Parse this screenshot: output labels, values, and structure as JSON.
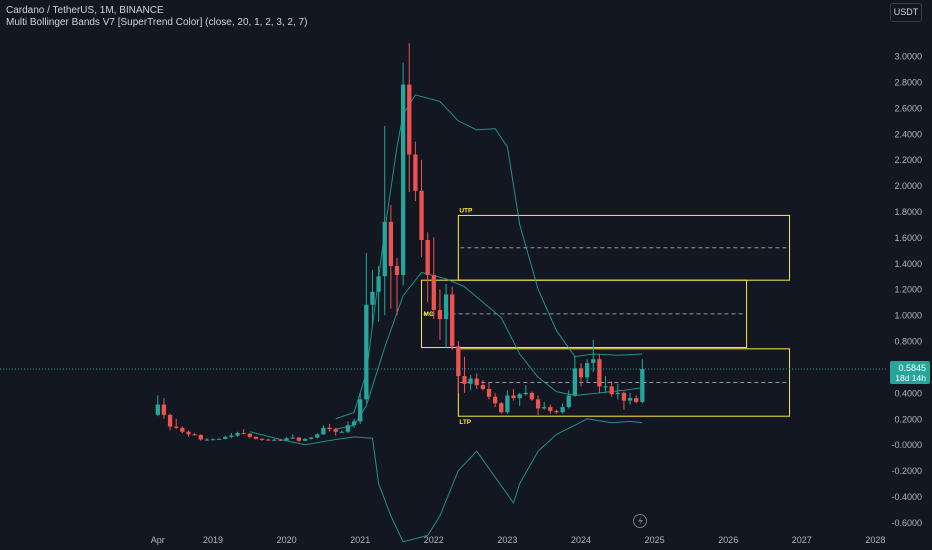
{
  "legend": {
    "title": "Cardano / TetherUS, 1M, BINANCE",
    "indicator": "Multi Bollinger Bands V7 [SuperTrend Color] (close, 20, 1, 2, 3, 2, 7)"
  },
  "currency_badge": "USDT",
  "price_label": {
    "price": "0.5845",
    "countdown": "18d 14h"
  },
  "colors": {
    "background": "#131722",
    "up": "#26a69a",
    "down": "#ef5350",
    "band": "#26a69a",
    "zone": "#ffeb3b",
    "price_line": "#26a69a",
    "axis_text": "#b2b5be"
  },
  "chart_data": {
    "type": "candlestick",
    "title": "Cardano / TetherUS, 1M, BINANCE",
    "x_tick_labels": [
      "Apr",
      "2019",
      "2020",
      "2021",
      "2022",
      "2023",
      "2024",
      "2025",
      "2026",
      "2027",
      "2028"
    ],
    "x_tick_dates": [
      "2018-04",
      "2019-01",
      "2020-01",
      "2021-01",
      "2022-01",
      "2023-01",
      "2024-01",
      "2025-01",
      "2026-01",
      "2027-01",
      "2028-01"
    ],
    "y_tick_labels": [
      "3.0000",
      "2.8000",
      "2.6000",
      "2.4000",
      "2.2000",
      "2.0000",
      "1.8000",
      "1.6000",
      "1.4000",
      "1.2000",
      "1.0000",
      "0.8000",
      "0.6000",
      "0.4000",
      "0.2000",
      "-0.0000",
      "-0.2000",
      "-0.4000",
      "-0.6000"
    ],
    "ylim": [
      -0.62,
      3.24
    ],
    "grid": false,
    "candles": [
      {
        "date": "2018-04",
        "o": 0.23,
        "h": 0.38,
        "l": 0.22,
        "c": 0.31
      },
      {
        "date": "2018-05",
        "o": 0.31,
        "h": 0.36,
        "l": 0.2,
        "c": 0.23
      },
      {
        "date": "2018-06",
        "o": 0.23,
        "h": 0.24,
        "l": 0.11,
        "c": 0.14
      },
      {
        "date": "2018-07",
        "o": 0.14,
        "h": 0.2,
        "l": 0.12,
        "c": 0.13
      },
      {
        "date": "2018-08",
        "o": 0.13,
        "h": 0.14,
        "l": 0.09,
        "c": 0.1
      },
      {
        "date": "2018-09",
        "o": 0.1,
        "h": 0.11,
        "l": 0.06,
        "c": 0.08
      },
      {
        "date": "2018-10",
        "o": 0.08,
        "h": 0.09,
        "l": 0.07,
        "c": 0.075
      },
      {
        "date": "2018-11",
        "o": 0.075,
        "h": 0.08,
        "l": 0.03,
        "c": 0.04
      },
      {
        "date": "2018-12",
        "o": 0.04,
        "h": 0.05,
        "l": 0.03,
        "c": 0.04
      },
      {
        "date": "2019-01",
        "o": 0.04,
        "h": 0.05,
        "l": 0.035,
        "c": 0.042
      },
      {
        "date": "2019-02",
        "o": 0.042,
        "h": 0.05,
        "l": 0.04,
        "c": 0.045
      },
      {
        "date": "2019-03",
        "o": 0.045,
        "h": 0.07,
        "l": 0.04,
        "c": 0.06
      },
      {
        "date": "2019-04",
        "o": 0.06,
        "h": 0.09,
        "l": 0.05,
        "c": 0.07
      },
      {
        "date": "2019-05",
        "o": 0.07,
        "h": 0.1,
        "l": 0.06,
        "c": 0.09
      },
      {
        "date": "2019-06",
        "o": 0.09,
        "h": 0.12,
        "l": 0.08,
        "c": 0.085
      },
      {
        "date": "2019-07",
        "o": 0.085,
        "h": 0.09,
        "l": 0.05,
        "c": 0.06
      },
      {
        "date": "2019-08",
        "o": 0.06,
        "h": 0.065,
        "l": 0.04,
        "c": 0.045
      },
      {
        "date": "2019-09",
        "o": 0.045,
        "h": 0.05,
        "l": 0.03,
        "c": 0.04
      },
      {
        "date": "2019-10",
        "o": 0.04,
        "h": 0.045,
        "l": 0.03,
        "c": 0.035
      },
      {
        "date": "2019-11",
        "o": 0.035,
        "h": 0.045,
        "l": 0.03,
        "c": 0.038
      },
      {
        "date": "2019-12",
        "o": 0.038,
        "h": 0.04,
        "l": 0.03,
        "c": 0.033
      },
      {
        "date": "2020-01",
        "o": 0.033,
        "h": 0.06,
        "l": 0.03,
        "c": 0.05
      },
      {
        "date": "2020-02",
        "o": 0.05,
        "h": 0.08,
        "l": 0.045,
        "c": 0.055
      },
      {
        "date": "2020-03",
        "o": 0.055,
        "h": 0.06,
        "l": 0.02,
        "c": 0.03
      },
      {
        "date": "2020-04",
        "o": 0.03,
        "h": 0.05,
        "l": 0.028,
        "c": 0.045
      },
      {
        "date": "2020-05",
        "o": 0.045,
        "h": 0.06,
        "l": 0.04,
        "c": 0.055
      },
      {
        "date": "2020-06",
        "o": 0.055,
        "h": 0.09,
        "l": 0.05,
        "c": 0.08
      },
      {
        "date": "2020-07",
        "o": 0.08,
        "h": 0.15,
        "l": 0.075,
        "c": 0.13
      },
      {
        "date": "2020-08",
        "o": 0.13,
        "h": 0.16,
        "l": 0.1,
        "c": 0.12
      },
      {
        "date": "2020-09",
        "o": 0.12,
        "h": 0.13,
        "l": 0.07,
        "c": 0.1
      },
      {
        "date": "2020-10",
        "o": 0.1,
        "h": 0.11,
        "l": 0.09,
        "c": 0.1
      },
      {
        "date": "2020-11",
        "o": 0.1,
        "h": 0.18,
        "l": 0.09,
        "c": 0.15
      },
      {
        "date": "2020-12",
        "o": 0.15,
        "h": 0.2,
        "l": 0.13,
        "c": 0.18
      },
      {
        "date": "2021-01",
        "o": 0.18,
        "h": 0.4,
        "l": 0.16,
        "c": 0.35
      },
      {
        "date": "2021-02",
        "o": 0.35,
        "h": 1.48,
        "l": 0.32,
        "c": 1.08
      },
      {
        "date": "2021-03",
        "o": 1.08,
        "h": 1.35,
        "l": 0.92,
        "c": 1.18
      },
      {
        "date": "2021-04",
        "o": 1.18,
        "h": 1.38,
        "l": 0.95,
        "c": 1.3
      },
      {
        "date": "2021-05",
        "o": 1.3,
        "h": 2.46,
        "l": 1.0,
        "c": 1.72
      },
      {
        "date": "2021-06",
        "o": 1.72,
        "h": 1.85,
        "l": 1.05,
        "c": 1.38
      },
      {
        "date": "2021-07",
        "o": 1.38,
        "h": 1.44,
        "l": 1.0,
        "c": 1.31
      },
      {
        "date": "2021-08",
        "o": 1.31,
        "h": 2.95,
        "l": 1.23,
        "c": 2.78
      },
      {
        "date": "2021-09",
        "o": 2.78,
        "h": 3.1,
        "l": 1.95,
        "c": 2.24
      },
      {
        "date": "2021-10",
        "o": 2.24,
        "h": 2.34,
        "l": 1.88,
        "c": 1.96
      },
      {
        "date": "2021-11",
        "o": 1.96,
        "h": 2.2,
        "l": 1.45,
        "c": 1.58
      },
      {
        "date": "2021-12",
        "o": 1.58,
        "h": 1.64,
        "l": 1.1,
        "c": 1.31
      },
      {
        "date": "2022-01",
        "o": 1.31,
        "h": 1.6,
        "l": 0.97,
        "c": 1.04
      },
      {
        "date": "2022-02",
        "o": 1.04,
        "h": 1.2,
        "l": 0.81,
        "c": 0.97
      },
      {
        "date": "2022-03",
        "o": 0.97,
        "h": 1.24,
        "l": 0.75,
        "c": 1.16
      },
      {
        "date": "2022-04",
        "o": 1.16,
        "h": 1.22,
        "l": 0.73,
        "c": 0.76
      },
      {
        "date": "2022-05",
        "o": 0.76,
        "h": 0.8,
        "l": 0.4,
        "c": 0.53
      },
      {
        "date": "2022-06",
        "o": 0.53,
        "h": 0.68,
        "l": 0.4,
        "c": 0.47
      },
      {
        "date": "2022-07",
        "o": 0.47,
        "h": 0.54,
        "l": 0.42,
        "c": 0.51
      },
      {
        "date": "2022-08",
        "o": 0.51,
        "h": 0.55,
        "l": 0.43,
        "c": 0.46
      },
      {
        "date": "2022-09",
        "o": 0.46,
        "h": 0.5,
        "l": 0.42,
        "c": 0.43
      },
      {
        "date": "2022-10",
        "o": 0.43,
        "h": 0.48,
        "l": 0.35,
        "c": 0.37
      },
      {
        "date": "2022-11",
        "o": 0.37,
        "h": 0.4,
        "l": 0.29,
        "c": 0.32
      },
      {
        "date": "2022-12",
        "o": 0.32,
        "h": 0.33,
        "l": 0.24,
        "c": 0.25
      },
      {
        "date": "2023-01",
        "o": 0.25,
        "h": 0.42,
        "l": 0.24,
        "c": 0.38
      },
      {
        "date": "2023-02",
        "o": 0.38,
        "h": 0.43,
        "l": 0.34,
        "c": 0.36
      },
      {
        "date": "2023-03",
        "o": 0.36,
        "h": 0.4,
        "l": 0.3,
        "c": 0.39
      },
      {
        "date": "2023-04",
        "o": 0.39,
        "h": 0.46,
        "l": 0.38,
        "c": 0.4
      },
      {
        "date": "2023-05",
        "o": 0.4,
        "h": 0.41,
        "l": 0.34,
        "c": 0.35
      },
      {
        "date": "2023-06",
        "o": 0.35,
        "h": 0.38,
        "l": 0.23,
        "c": 0.28
      },
      {
        "date": "2023-07",
        "o": 0.28,
        "h": 0.33,
        "l": 0.27,
        "c": 0.29
      },
      {
        "date": "2023-08",
        "o": 0.29,
        "h": 0.31,
        "l": 0.24,
        "c": 0.26
      },
      {
        "date": "2023-09",
        "o": 0.26,
        "h": 0.27,
        "l": 0.24,
        "c": 0.25
      },
      {
        "date": "2023-10",
        "o": 0.25,
        "h": 0.32,
        "l": 0.24,
        "c": 0.29
      },
      {
        "date": "2023-11",
        "o": 0.29,
        "h": 0.42,
        "l": 0.28,
        "c": 0.38
      },
      {
        "date": "2023-12",
        "o": 0.38,
        "h": 0.68,
        "l": 0.37,
        "c": 0.59
      },
      {
        "date": "2024-01",
        "o": 0.59,
        "h": 0.63,
        "l": 0.45,
        "c": 0.52
      },
      {
        "date": "2024-02",
        "o": 0.52,
        "h": 0.66,
        "l": 0.48,
        "c": 0.63
      },
      {
        "date": "2024-03",
        "o": 0.63,
        "h": 0.81,
        "l": 0.56,
        "c": 0.66
      },
      {
        "date": "2024-04",
        "o": 0.66,
        "h": 0.7,
        "l": 0.4,
        "c": 0.45
      },
      {
        "date": "2024-05",
        "o": 0.45,
        "h": 0.53,
        "l": 0.4,
        "c": 0.45
      },
      {
        "date": "2024-06",
        "o": 0.45,
        "h": 0.49,
        "l": 0.37,
        "c": 0.39
      },
      {
        "date": "2024-07",
        "o": 0.39,
        "h": 0.47,
        "l": 0.35,
        "c": 0.4
      },
      {
        "date": "2024-08",
        "o": 0.4,
        "h": 0.41,
        "l": 0.27,
        "c": 0.34
      },
      {
        "date": "2024-09",
        "o": 0.34,
        "h": 0.4,
        "l": 0.31,
        "c": 0.36
      },
      {
        "date": "2024-10",
        "o": 0.36,
        "h": 0.38,
        "l": 0.32,
        "c": 0.33
      },
      {
        "date": "2024-11",
        "o": 0.33,
        "h": 0.66,
        "l": 0.32,
        "c": 0.5845
      }
    ],
    "bands": {
      "upper": [
        {
          "date": "2020-09",
          "v": 0.2
        },
        {
          "date": "2020-12",
          "v": 0.25
        },
        {
          "date": "2021-02",
          "v": 0.55
        },
        {
          "date": "2021-05",
          "v": 1.65
        },
        {
          "date": "2021-07",
          "v": 2.3
        },
        {
          "date": "2021-08",
          "v": 2.55
        },
        {
          "date": "2021-10",
          "v": 2.7
        },
        {
          "date": "2022-02",
          "v": 2.65
        },
        {
          "date": "2022-05",
          "v": 2.5
        },
        {
          "date": "2022-08",
          "v": 2.43
        },
        {
          "date": "2022-11",
          "v": 2.44
        },
        {
          "date": "2023-01",
          "v": 2.3
        },
        {
          "date": "2023-03",
          "v": 1.7
        },
        {
          "date": "2023-06",
          "v": 1.2
        },
        {
          "date": "2023-09",
          "v": 0.88
        },
        {
          "date": "2023-12",
          "v": 0.68
        },
        {
          "date": "2024-03",
          "v": 0.7
        },
        {
          "date": "2024-07",
          "v": 0.69
        },
        {
          "date": "2024-11",
          "v": 0.7
        }
      ],
      "middle": [
        {
          "date": "2020-09",
          "v": 0.12
        },
        {
          "date": "2020-12",
          "v": 0.15
        },
        {
          "date": "2021-02",
          "v": 0.3
        },
        {
          "date": "2021-05",
          "v": 0.75
        },
        {
          "date": "2021-08",
          "v": 1.15
        },
        {
          "date": "2021-11",
          "v": 1.33
        },
        {
          "date": "2022-03",
          "v": 1.28
        },
        {
          "date": "2022-06",
          "v": 1.22
        },
        {
          "date": "2022-09",
          "v": 1.1
        },
        {
          "date": "2022-12",
          "v": 0.98
        },
        {
          "date": "2023-03",
          "v": 0.7
        },
        {
          "date": "2023-06",
          "v": 0.52
        },
        {
          "date": "2023-09",
          "v": 0.41
        },
        {
          "date": "2023-12",
          "v": 0.38
        },
        {
          "date": "2024-04",
          "v": 0.4
        },
        {
          "date": "2024-08",
          "v": 0.42
        },
        {
          "date": "2024-11",
          "v": 0.44
        }
      ],
      "lower": [
        {
          "date": "2020-09",
          "v": 0.04
        },
        {
          "date": "2020-12",
          "v": 0.06
        },
        {
          "date": "2021-03",
          "v": 0.05
        },
        {
          "date": "2021-04",
          "v": -0.3
        },
        {
          "date": "2021-06",
          "v": -0.55
        },
        {
          "date": "2021-08",
          "v": -0.75
        },
        {
          "date": "2021-12",
          "v": -0.7
        },
        {
          "date": "2022-02",
          "v": -0.55
        },
        {
          "date": "2022-05",
          "v": -0.2
        },
        {
          "date": "2022-08",
          "v": -0.05
        },
        {
          "date": "2022-11",
          "v": -0.25
        },
        {
          "date": "2023-02",
          "v": -0.45
        },
        {
          "date": "2023-03",
          "v": -0.3
        },
        {
          "date": "2023-06",
          "v": -0.05
        },
        {
          "date": "2023-09",
          "v": 0.08
        },
        {
          "date": "2023-12",
          "v": 0.15
        },
        {
          "date": "2024-02",
          "v": 0.2
        },
        {
          "date": "2024-06",
          "v": 0.17
        },
        {
          "date": "2024-09",
          "v": 0.18
        },
        {
          "date": "2024-11",
          "v": 0.17
        }
      ],
      "lower_early": [
        {
          "date": "2019-07",
          "v": 0.1
        },
        {
          "date": "2019-12",
          "v": 0.04
        },
        {
          "date": "2020-04",
          "v": 0.0
        },
        {
          "date": "2020-09",
          "v": 0.04
        }
      ]
    },
    "zones": [
      {
        "label": "UTP",
        "from": "2022-05",
        "to": "2026-11",
        "top": 1.77,
        "bottom": 1.27,
        "mid": 1.52
      },
      {
        "label": "MC",
        "from": "2021-11",
        "to": "2026-04",
        "top": 1.27,
        "bottom": 0.75,
        "mid": 1.01
      },
      {
        "label": "LTP",
        "from": "2022-05",
        "to": "2026-11",
        "top": 0.74,
        "bottom": 0.22,
        "mid": 0.48
      }
    ],
    "current_price": 0.5845
  }
}
